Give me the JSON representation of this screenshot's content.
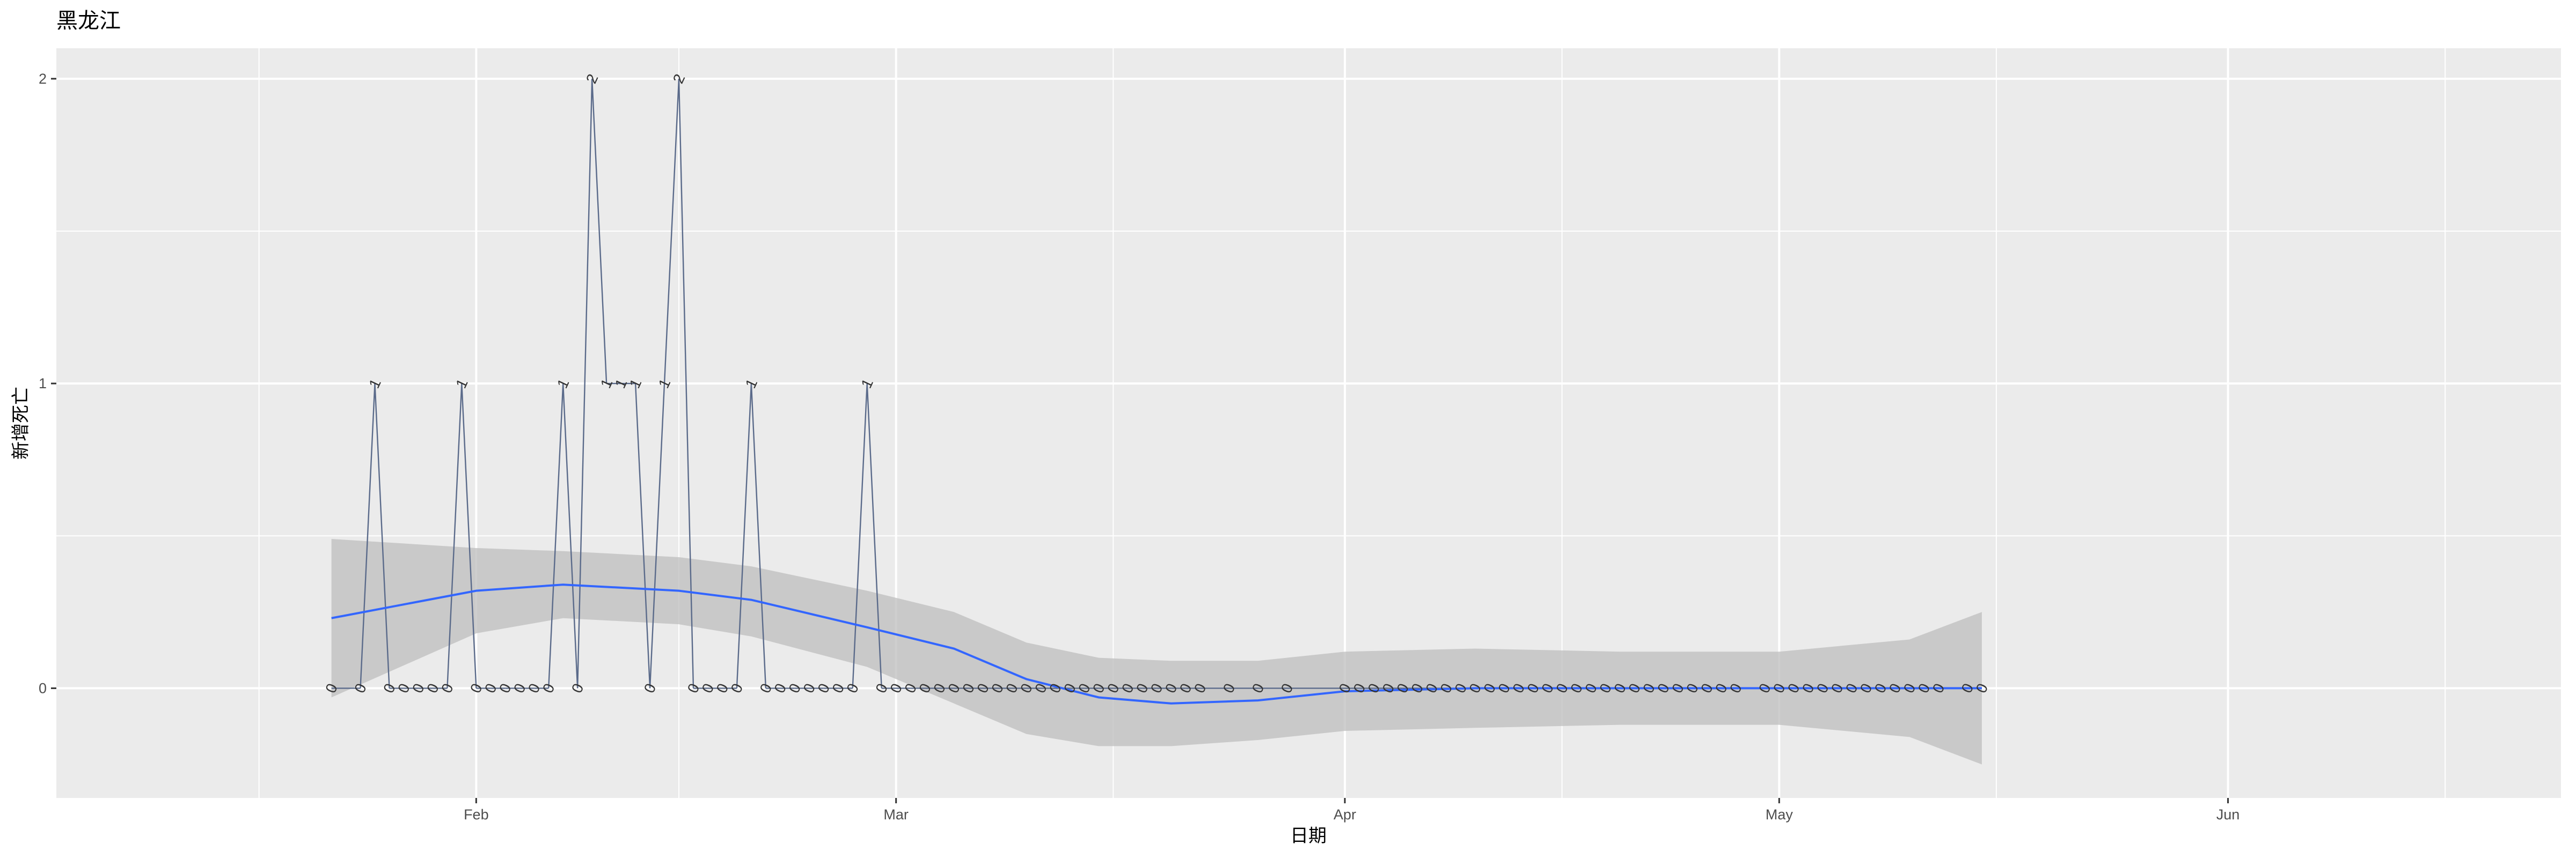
{
  "chart_data": {
    "type": "line",
    "title": "黑龙江",
    "xlabel": "日期",
    "ylabel": "新增死亡",
    "x_ticks": [
      {
        "date": "2020-02-01",
        "label": "Feb"
      },
      {
        "date": "2020-03-01",
        "label": "Mar"
      },
      {
        "date": "2020-04-01",
        "label": "Apr"
      },
      {
        "date": "2020-05-01",
        "label": "May"
      },
      {
        "date": "2020-06-01",
        "label": "Jun"
      }
    ],
    "x_minor_dates": [
      "2020-01-17",
      "2020-02-15",
      "2020-03-16",
      "2020-04-16",
      "2020-05-16",
      "2020-06-16"
    ],
    "y_ticks": [
      0,
      1,
      2
    ],
    "y_minor": [
      0.5,
      1.5
    ],
    "xlim": [
      "2020-01-03",
      "2020-06-24"
    ],
    "ylim": [
      -0.36,
      2.1
    ],
    "grid": true,
    "background": "#ebebeb",
    "colors": {
      "line": "#5a6a8a",
      "smooth": "#3366ff",
      "ribbon": "#bebebe",
      "grid": "#ffffff"
    },
    "series": [
      {
        "points": [
          [
            "2020-01-22",
            0
          ],
          [
            "2020-01-24",
            0
          ],
          [
            "2020-01-25",
            1
          ],
          [
            "2020-01-26",
            0
          ],
          [
            "2020-01-27",
            0
          ],
          [
            "2020-01-28",
            0
          ],
          [
            "2020-01-29",
            0
          ],
          [
            "2020-01-30",
            0
          ],
          [
            "2020-01-31",
            1
          ],
          [
            "2020-02-01",
            0
          ],
          [
            "2020-02-02",
            0
          ],
          [
            "2020-02-03",
            0
          ],
          [
            "2020-02-04",
            0
          ],
          [
            "2020-02-05",
            0
          ],
          [
            "2020-02-06",
            0
          ],
          [
            "2020-02-07",
            1
          ],
          [
            "2020-02-08",
            0
          ],
          [
            "2020-02-09",
            2
          ],
          [
            "2020-02-10",
            1
          ],
          [
            "2020-02-11",
            1
          ],
          [
            "2020-02-12",
            1
          ],
          [
            "2020-02-13",
            0
          ],
          [
            "2020-02-14",
            1
          ],
          [
            "2020-02-15",
            2
          ],
          [
            "2020-02-16",
            0
          ],
          [
            "2020-02-17",
            0
          ],
          [
            "2020-02-18",
            0
          ],
          [
            "2020-02-19",
            0
          ],
          [
            "2020-02-20",
            1
          ],
          [
            "2020-02-21",
            0
          ],
          [
            "2020-02-22",
            0
          ],
          [
            "2020-02-23",
            0
          ],
          [
            "2020-02-24",
            0
          ],
          [
            "2020-02-25",
            0
          ],
          [
            "2020-02-26",
            0
          ],
          [
            "2020-02-27",
            0
          ],
          [
            "2020-02-28",
            1
          ],
          [
            "2020-02-29",
            0
          ],
          [
            "2020-03-01",
            0
          ],
          [
            "2020-03-02",
            0
          ],
          [
            "2020-03-03",
            0
          ],
          [
            "2020-03-04",
            0
          ],
          [
            "2020-03-05",
            0
          ],
          [
            "2020-03-06",
            0
          ],
          [
            "2020-03-07",
            0
          ],
          [
            "2020-03-08",
            0
          ],
          [
            "2020-03-09",
            0
          ],
          [
            "2020-03-10",
            0
          ],
          [
            "2020-03-11",
            0
          ],
          [
            "2020-03-12",
            0
          ],
          [
            "2020-03-13",
            0
          ],
          [
            "2020-03-14",
            0
          ],
          [
            "2020-03-15",
            0
          ],
          [
            "2020-03-16",
            0
          ],
          [
            "2020-03-17",
            0
          ],
          [
            "2020-03-18",
            0
          ],
          [
            "2020-03-19",
            0
          ],
          [
            "2020-03-20",
            0
          ],
          [
            "2020-03-21",
            0
          ],
          [
            "2020-03-22",
            0
          ],
          [
            "2020-03-24",
            0
          ],
          [
            "2020-03-26",
            0
          ],
          [
            "2020-03-28",
            0
          ],
          [
            "2020-04-01",
            0
          ],
          [
            "2020-04-02",
            0
          ],
          [
            "2020-04-03",
            0
          ],
          [
            "2020-04-04",
            0
          ],
          [
            "2020-04-05",
            0
          ],
          [
            "2020-04-06",
            0
          ],
          [
            "2020-04-07",
            0
          ],
          [
            "2020-04-08",
            0
          ],
          [
            "2020-04-09",
            0
          ],
          [
            "2020-04-10",
            0
          ],
          [
            "2020-04-11",
            0
          ],
          [
            "2020-04-12",
            0
          ],
          [
            "2020-04-13",
            0
          ],
          [
            "2020-04-14",
            0
          ],
          [
            "2020-04-15",
            0
          ],
          [
            "2020-04-16",
            0
          ],
          [
            "2020-04-17",
            0
          ],
          [
            "2020-04-18",
            0
          ],
          [
            "2020-04-19",
            0
          ],
          [
            "2020-04-20",
            0
          ],
          [
            "2020-04-21",
            0
          ],
          [
            "2020-04-22",
            0
          ],
          [
            "2020-04-23",
            0
          ],
          [
            "2020-04-24",
            0
          ],
          [
            "2020-04-25",
            0
          ],
          [
            "2020-04-26",
            0
          ],
          [
            "2020-04-27",
            0
          ],
          [
            "2020-04-28",
            0
          ],
          [
            "2020-04-30",
            0
          ],
          [
            "2020-05-01",
            0
          ],
          [
            "2020-05-02",
            0
          ],
          [
            "2020-05-03",
            0
          ],
          [
            "2020-05-04",
            0
          ],
          [
            "2020-05-05",
            0
          ],
          [
            "2020-05-06",
            0
          ],
          [
            "2020-05-07",
            0
          ],
          [
            "2020-05-08",
            0
          ],
          [
            "2020-05-09",
            0
          ],
          [
            "2020-05-10",
            0
          ],
          [
            "2020-05-11",
            0
          ],
          [
            "2020-05-12",
            0
          ],
          [
            "2020-05-14",
            0
          ],
          [
            "2020-05-15",
            0
          ]
        ]
      }
    ],
    "smooth": {
      "dates": [
        "2020-01-22",
        "2020-02-01",
        "2020-02-07",
        "2020-02-15",
        "2020-02-20",
        "2020-02-28",
        "2020-03-05",
        "2020-03-10",
        "2020-03-15",
        "2020-03-20",
        "2020-03-26",
        "2020-04-01",
        "2020-04-10",
        "2020-04-20",
        "2020-05-01",
        "2020-05-10",
        "2020-05-15"
      ],
      "fit": [
        0.23,
        0.32,
        0.34,
        0.32,
        0.29,
        0.2,
        0.13,
        0.03,
        -0.03,
        -0.05,
        -0.04,
        -0.01,
        0.0,
        0.0,
        0.0,
        0.0,
        0.0
      ],
      "lower": [
        -0.03,
        0.18,
        0.23,
        0.21,
        0.17,
        0.07,
        -0.05,
        -0.15,
        -0.19,
        -0.19,
        -0.17,
        -0.14,
        -0.13,
        -0.12,
        -0.12,
        -0.16,
        -0.25
      ],
      "upper": [
        0.49,
        0.46,
        0.45,
        0.43,
        0.4,
        0.32,
        0.25,
        0.15,
        0.1,
        0.09,
        0.09,
        0.12,
        0.13,
        0.12,
        0.12,
        0.16,
        0.25
      ]
    }
  }
}
